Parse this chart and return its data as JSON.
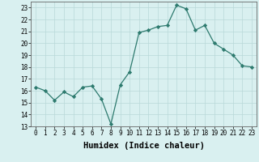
{
  "x": [
    0,
    1,
    2,
    3,
    4,
    5,
    6,
    7,
    8,
    9,
    10,
    11,
    12,
    13,
    14,
    15,
    16,
    17,
    18,
    19,
    20,
    21,
    22,
    23
  ],
  "y": [
    16.3,
    16.0,
    15.2,
    15.9,
    15.5,
    16.3,
    16.4,
    15.3,
    13.2,
    16.5,
    17.6,
    20.9,
    21.1,
    21.4,
    21.5,
    23.2,
    22.9,
    21.1,
    21.5,
    20.0,
    19.5,
    19.0,
    18.1,
    18.0
  ],
  "line_color": "#2d7a6e",
  "marker": "D",
  "marker_size": 2.2,
  "bg_color": "#d9f0f0",
  "grid_color": "#b8d8d8",
  "xlabel": "Humidex (Indice chaleur)",
  "ylim": [
    13,
    23.5
  ],
  "yticks": [
    13,
    14,
    15,
    16,
    17,
    18,
    19,
    20,
    21,
    22,
    23
  ],
  "xticks": [
    0,
    1,
    2,
    3,
    4,
    5,
    6,
    7,
    8,
    9,
    10,
    11,
    12,
    13,
    14,
    15,
    16,
    17,
    18,
    19,
    20,
    21,
    22,
    23
  ],
  "tick_fontsize": 5.5,
  "xlabel_fontsize": 7.5,
  "linewidth": 0.9
}
